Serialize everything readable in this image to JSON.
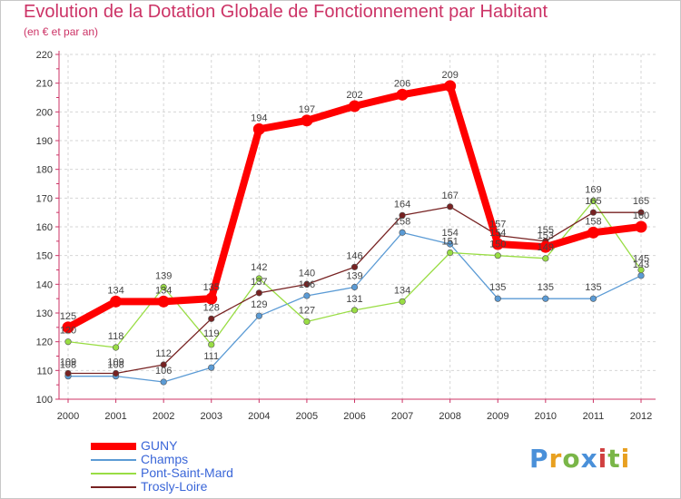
{
  "header": {
    "title": "Evolution de la Dotation Globale de Fonctionnement par Habitant",
    "subtitle": "(en € et par an)"
  },
  "chart_data": {
    "type": "line",
    "title": "Evolution de la Dotation Globale de Fonctionnement par Habitant",
    "subtitle": "(en € et par an)",
    "xlabel": "",
    "ylabel": "",
    "x": [
      "2000",
      "2001",
      "2002",
      "2003",
      "2004",
      "2005",
      "2006",
      "2007",
      "2008",
      "2009",
      "2010",
      "2011",
      "2012"
    ],
    "ylim": [
      100,
      220
    ],
    "yticks": [
      "100",
      "110",
      "120",
      "130",
      "140",
      "150",
      "160",
      "170",
      "180",
      "190",
      "200",
      "210",
      "220"
    ],
    "grid": true,
    "series": [
      {
        "name": "GUNY",
        "color": "#ff0000",
        "values": [
          125,
          134,
          134,
          135,
          194,
          197,
          202,
          206,
          209,
          154,
          153,
          158,
          160
        ],
        "labels": [
          "125",
          "134",
          "134",
          "135",
          "194",
          "197",
          "202",
          "206",
          "209",
          "154",
          "153",
          "158",
          "160"
        ]
      },
      {
        "name": "Champs",
        "color": "#5b9bd5",
        "values": [
          108,
          108,
          106,
          111,
          129,
          136,
          139,
          158,
          154,
          135,
          135,
          135,
          143
        ],
        "labels": [
          "108",
          "108",
          "106",
          "111",
          "129",
          "136",
          "139",
          "158",
          "154",
          "135",
          "135",
          "135",
          "143"
        ]
      },
      {
        "name": "Pont-Saint-Mard",
        "color": "#99dd44",
        "values": [
          120,
          118,
          139,
          119,
          142,
          127,
          131,
          134,
          151,
          150,
          149,
          169,
          145
        ],
        "labels": [
          "120",
          "118",
          "139",
          "119",
          "142",
          "127",
          "131",
          "134",
          "151",
          "150",
          "149",
          "169",
          "145"
        ]
      },
      {
        "name": "Trosly-Loire",
        "color": "#772222",
        "values": [
          109,
          109,
          112,
          128,
          137,
          140,
          146,
          164,
          167,
          157,
          155,
          165,
          165
        ],
        "labels": [
          "109",
          "109",
          "112",
          "128",
          "137",
          "140",
          "146",
          "164",
          "167",
          "157",
          "155",
          "165",
          "165"
        ]
      }
    ],
    "legend_position": "bottom-left"
  },
  "legend": {
    "items": [
      {
        "label": "GUNY",
        "color": "#ff0000"
      },
      {
        "label": "Champs",
        "color": "#5b9bd5"
      },
      {
        "label": "Pont-Saint-Mard",
        "color": "#99dd44"
      },
      {
        "label": "Trosly-Loire",
        "color": "#772222"
      }
    ]
  },
  "logo": {
    "letters": [
      "P",
      "r",
      "o",
      "x",
      "i",
      "t",
      "i"
    ],
    "colors": [
      "#4a90d9",
      "#e8a020",
      "#7ab648",
      "#4a90d9",
      "#d04040",
      "#7ab648",
      "#e8a020"
    ]
  }
}
